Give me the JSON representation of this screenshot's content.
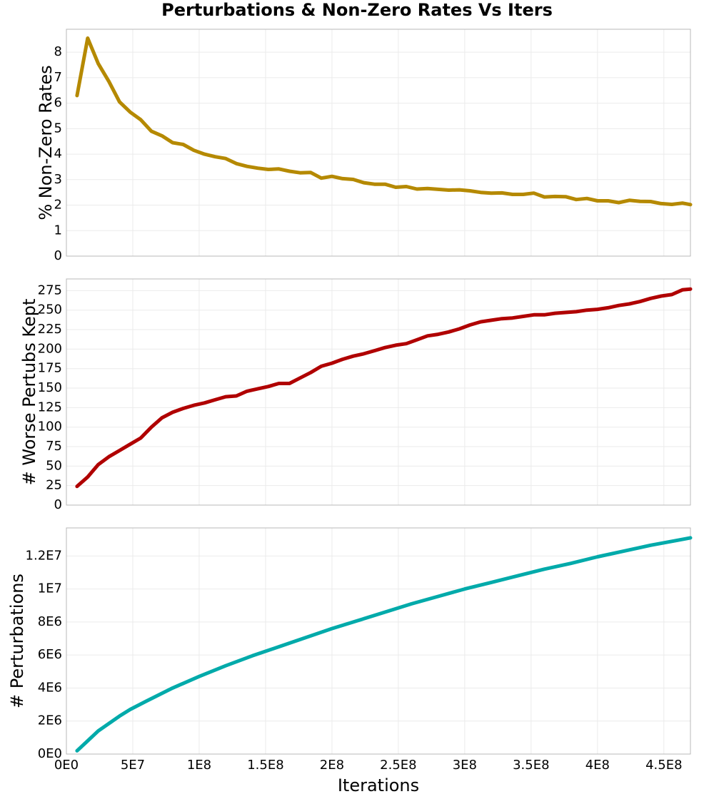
{
  "figure": {
    "title": "Perturbations & Non-Zero Rates Vs Iters",
    "xlabel": "Iterations"
  },
  "chart_data": [
    {
      "type": "line",
      "ylabel": "% Non-Zero Rates",
      "xlim": [
        0,
        470000000
      ],
      "ylim": [
        0,
        8.9
      ],
      "yticks": [
        0,
        1,
        2,
        3,
        4,
        5,
        6,
        7,
        8
      ],
      "ytick_labels": [
        "0",
        "1",
        "2",
        "3",
        "4",
        "5",
        "6",
        "7",
        "8"
      ],
      "xtick_labels_shown": false,
      "color": "#b58900",
      "x": [
        8000000,
        16000000,
        24000000,
        32000000,
        40000000,
        48000000,
        56000000,
        64000000,
        72000000,
        80000000,
        88000000,
        96000000,
        104000000,
        112000000,
        120000000,
        128000000,
        136000000,
        144000000,
        152000000,
        160000000,
        168000000,
        176000000,
        184000000,
        192000000,
        200000000,
        208000000,
        216000000,
        224000000,
        232000000,
        240000000,
        248000000,
        256000000,
        264000000,
        272000000,
        280000000,
        288000000,
        296000000,
        304000000,
        312000000,
        320000000,
        328000000,
        336000000,
        344000000,
        352000000,
        360000000,
        368000000,
        376000000,
        384000000,
        392000000,
        400000000,
        408000000,
        416000000,
        424000000,
        432000000,
        440000000,
        448000000,
        456000000,
        464000000,
        470000000
      ],
      "y": [
        6.3,
        8.55,
        7.55,
        6.85,
        6.05,
        5.65,
        5.35,
        4.9,
        4.72,
        4.45,
        4.38,
        4.15,
        4.0,
        3.9,
        3.83,
        3.63,
        3.52,
        3.45,
        3.4,
        3.42,
        3.33,
        3.27,
        3.28,
        3.06,
        3.13,
        3.04,
        3.01,
        2.88,
        2.82,
        2.82,
        2.7,
        2.73,
        2.63,
        2.65,
        2.62,
        2.59,
        2.6,
        2.56,
        2.5,
        2.47,
        2.48,
        2.42,
        2.42,
        2.47,
        2.32,
        2.34,
        2.33,
        2.22,
        2.26,
        2.17,
        2.17,
        2.1,
        2.19,
        2.15,
        2.14,
        2.06,
        2.03,
        2.08,
        2.02
      ],
      "grid": true
    },
    {
      "type": "line",
      "ylabel": "# Worse Pertubs Kept",
      "xlim": [
        0,
        470000000
      ],
      "ylim": [
        0,
        290
      ],
      "yticks": [
        0,
        25,
        50,
        75,
        100,
        125,
        150,
        175,
        200,
        225,
        250,
        275
      ],
      "ytick_labels": [
        "0",
        "25",
        "50",
        "75",
        "100",
        "125",
        "150",
        "175",
        "200",
        "225",
        "250",
        "275"
      ],
      "xtick_labels_shown": false,
      "color": "#b00000",
      "x": [
        8000000,
        16000000,
        24000000,
        32000000,
        40000000,
        48000000,
        56000000,
        64000000,
        72000000,
        80000000,
        88000000,
        96000000,
        104000000,
        112000000,
        120000000,
        128000000,
        136000000,
        144000000,
        152000000,
        160000000,
        168000000,
        176000000,
        184000000,
        192000000,
        200000000,
        208000000,
        216000000,
        224000000,
        232000000,
        240000000,
        248000000,
        256000000,
        264000000,
        272000000,
        280000000,
        288000000,
        296000000,
        304000000,
        312000000,
        320000000,
        328000000,
        336000000,
        344000000,
        352000000,
        360000000,
        368000000,
        376000000,
        384000000,
        392000000,
        400000000,
        408000000,
        416000000,
        424000000,
        432000000,
        440000000,
        448000000,
        456000000,
        464000000,
        470000000
      ],
      "y": [
        24,
        36,
        52,
        62,
        70,
        78,
        86,
        100,
        112,
        119,
        124,
        128,
        131,
        135,
        139,
        140,
        146,
        149,
        152,
        156,
        156,
        163,
        170,
        178,
        182,
        187,
        191,
        194,
        198,
        202,
        205,
        207,
        212,
        217,
        219,
        222,
        226,
        231,
        235,
        237,
        239,
        240,
        242,
        244,
        244,
        246,
        247,
        248,
        250,
        251,
        253,
        256,
        258,
        261,
        265,
        268,
        270,
        276,
        277
      ],
      "grid": true
    },
    {
      "type": "line",
      "ylabel": "# Perturbations",
      "xlim": [
        0,
        470000000
      ],
      "ylim": [
        0,
        13700000
      ],
      "yticks": [
        0,
        2000000,
        4000000,
        6000000,
        8000000,
        10000000,
        12000000
      ],
      "ytick_labels": [
        "0E0",
        "2E6",
        "4E6",
        "6E6",
        "8E6",
        "1E7",
        "1.2E7"
      ],
      "xticks": [
        0,
        50000000,
        100000000,
        150000000,
        200000000,
        250000000,
        300000000,
        350000000,
        400000000,
        450000000
      ],
      "xtick_labels": [
        "0E0",
        "5E7",
        "1E8",
        "1.5E8",
        "2E8",
        "2.5E8",
        "3E8",
        "3.5E8",
        "4E8",
        "4.5E8"
      ],
      "xtick_labels_shown": true,
      "color": "#00aaaa",
      "x": [
        8000000,
        16000000,
        24000000,
        32000000,
        40000000,
        48000000,
        60000000,
        80000000,
        100000000,
        120000000,
        140000000,
        160000000,
        180000000,
        200000000,
        220000000,
        240000000,
        260000000,
        280000000,
        300000000,
        320000000,
        340000000,
        360000000,
        380000000,
        400000000,
        420000000,
        440000000,
        460000000,
        470000000
      ],
      "y": [
        200000,
        800000,
        1400000,
        1850000,
        2300000,
        2700000,
        3200000,
        4000000,
        4700000,
        5350000,
        5950000,
        6500000,
        7050000,
        7600000,
        8100000,
        8600000,
        9100000,
        9550000,
        10000000,
        10400000,
        10800000,
        11200000,
        11550000,
        11950000,
        12300000,
        12650000,
        12950000,
        13100000
      ],
      "grid": true
    }
  ]
}
